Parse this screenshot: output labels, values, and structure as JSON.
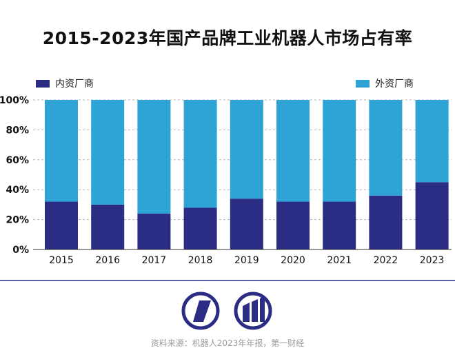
{
  "chart_data": {
    "type": "bar",
    "stacked": true,
    "title": "2015-2023年国产品牌工业机器人市场占有率",
    "categories": [
      "2015",
      "2016",
      "2017",
      "2018",
      "2019",
      "2020",
      "2021",
      "2022",
      "2023"
    ],
    "series": [
      {
        "name": "内资厂商",
        "values": [
          32,
          30,
          24,
          28,
          34,
          32,
          32,
          36,
          45
        ],
        "color": "#2b2c83"
      },
      {
        "name": "外资厂商",
        "values": [
          68,
          70,
          76,
          72,
          66,
          68,
          68,
          64,
          55
        ],
        "color": "#2ea3d6"
      }
    ],
    "ylim": [
      0,
      100
    ],
    "yticks": [
      "0%",
      "20%",
      "40%",
      "60%",
      "80%",
      "100%"
    ],
    "grid": true,
    "legend_position": "top"
  },
  "footer": {
    "source": "资料来源：机器人2023年年报，第一财经",
    "line_color": "#5b5ea6",
    "logo_color": "#2b2c83"
  }
}
